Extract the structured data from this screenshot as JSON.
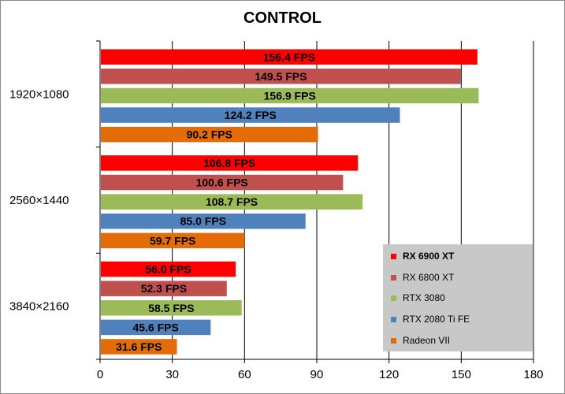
{
  "chart_data": {
    "type": "bar",
    "orientation": "horizontal",
    "title": "CONTROL",
    "categories": [
      "1920×1080",
      "2560×1440",
      "3840×2160"
    ],
    "series": [
      {
        "name": "RX 6900 XT",
        "color": "#ff0000",
        "values": [
          156.4,
          106.8,
          56.0
        ],
        "labels": [
          "156.4 FPS",
          "106.8 FPS",
          "56.0 FPS"
        ],
        "legend_bold": true
      },
      {
        "name": "RX 6800 XT",
        "color": "#c0504d",
        "values": [
          149.5,
          100.6,
          52.3
        ],
        "labels": [
          "149.5 FPS",
          "100.6 FPS",
          "52.3 FPS"
        ],
        "legend_bold": false
      },
      {
        "name": "RTX 3080",
        "color": "#9bbb59",
        "values": [
          156.9,
          108.7,
          58.5
        ],
        "labels": [
          "156.9 FPS",
          "108.7 FPS",
          "58.5 FPS"
        ],
        "legend_bold": false
      },
      {
        "name": "RTX 2080 Ti FE",
        "color": "#4f81bd",
        "values": [
          124.2,
          85.0,
          45.6
        ],
        "labels": [
          "124.2 FPS",
          "85.0 FPS",
          "45.6 FPS"
        ],
        "legend_bold": false
      },
      {
        "name": "Radeon VII",
        "color": "#e36c09",
        "values": [
          90.2,
          59.7,
          31.6
        ],
        "labels": [
          "90.2 FPS",
          "59.7 FPS",
          "31.6 FPS"
        ],
        "legend_bold": false
      }
    ],
    "xlim": [
      0,
      180
    ],
    "xticks": [
      "0",
      "30",
      "60",
      "90",
      "120",
      "150",
      "180"
    ],
    "xgrid": true,
    "legend": "bottom-right"
  }
}
